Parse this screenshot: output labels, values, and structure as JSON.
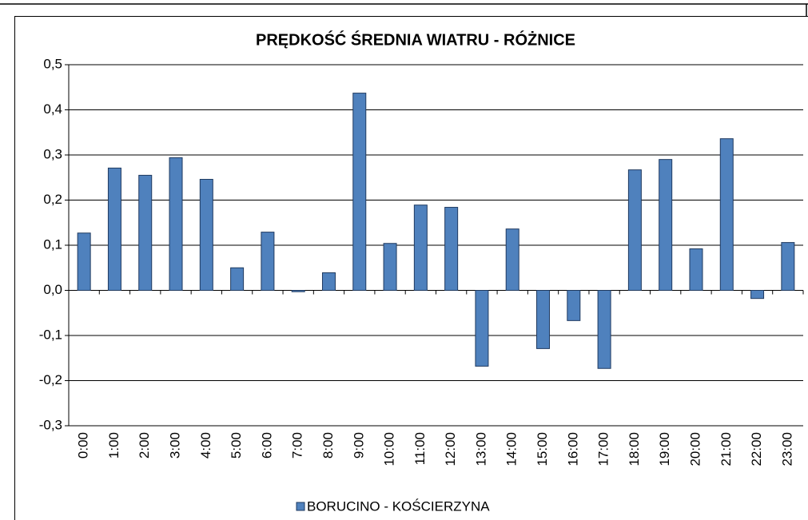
{
  "chart_data": {
    "type": "bar",
    "title": "PRĘDKOŚĆ ŚREDNIA WIATRU - RÓŻNICE",
    "categories": [
      "0:00",
      "1:00",
      "2:00",
      "3:00",
      "4:00",
      "5:00",
      "6:00",
      "7:00",
      "8:00",
      "9:00",
      "10:00",
      "11:00",
      "12:00",
      "13:00",
      "14:00",
      "15:00",
      "16:00",
      "17:00",
      "18:00",
      "19:00",
      "20:00",
      "21:00",
      "22:00",
      "23:00"
    ],
    "series": [
      {
        "name": "BORUCINO - KOŚCIERZYNA",
        "color": "#4f81bd",
        "values": [
          0.127,
          0.271,
          0.255,
          0.294,
          0.246,
          0.05,
          0.129,
          -0.003,
          0.039,
          0.437,
          0.104,
          0.189,
          0.184,
          -0.168,
          0.136,
          -0.129,
          -0.067,
          -0.173,
          0.267,
          0.29,
          0.092,
          0.336,
          -0.018,
          0.106
        ]
      }
    ],
    "ylim": [
      -0.3,
      0.5
    ],
    "yticks": [
      {
        "value": -0.3,
        "label": "-0,3"
      },
      {
        "value": -0.2,
        "label": "-0,2"
      },
      {
        "value": -0.1,
        "label": "-0,1"
      },
      {
        "value": 0,
        "label": "0,0"
      },
      {
        "value": 0.1,
        "label": "0,1"
      },
      {
        "value": 0.2,
        "label": "0,2"
      },
      {
        "value": 0.3,
        "label": "0,3"
      },
      {
        "value": 0.4,
        "label": "0,4"
      },
      {
        "value": 0.5,
        "label": "0,5"
      }
    ],
    "grid": true,
    "legend": "bottom"
  }
}
